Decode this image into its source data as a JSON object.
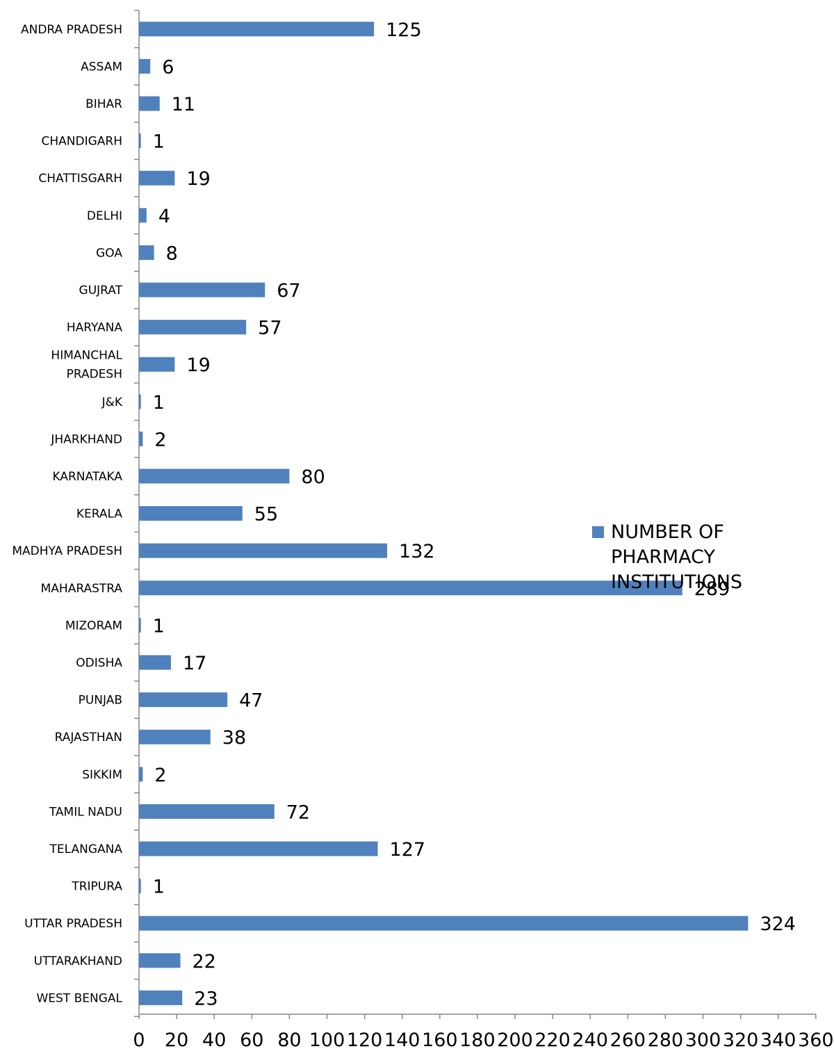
{
  "chart_data": {
    "type": "bar",
    "orientation": "horizontal",
    "categories": [
      "ANDRA PRADESH",
      "ASSAM",
      "BIHAR",
      "CHANDIGARH",
      "CHATTISGARH",
      "DELHI",
      "GOA",
      "GUJRAT",
      "HARYANA",
      "HIMANCHAL PRADESH",
      "J&K",
      "JHARKHAND",
      "KARNATAKA",
      "KERALA",
      "MADHYA PRADESH",
      "MAHARASTRA",
      "MIZORAM",
      "ODISHA",
      "PUNJAB",
      "RAJASTHAN",
      "SIKKIM",
      "TAMIL NADU",
      "TELANGANA",
      "TRIPURA",
      "UTTAR PRADESH",
      "UTTARAKHAND",
      "WEST BENGAL"
    ],
    "category_lines": [
      [
        "ANDRA PRADESH"
      ],
      [
        "ASSAM"
      ],
      [
        "BIHAR"
      ],
      [
        "CHANDIGARH"
      ],
      [
        "CHATTISGARH"
      ],
      [
        "DELHI"
      ],
      [
        "GOA"
      ],
      [
        "GUJRAT"
      ],
      [
        "HARYANA"
      ],
      [
        "HIMANCHAL",
        "PRADESH"
      ],
      [
        "J&K"
      ],
      [
        "JHARKHAND"
      ],
      [
        "KARNATAKA"
      ],
      [
        "KERALA"
      ],
      [
        "MADHYA PRADESH"
      ],
      [
        "MAHARASTRA"
      ],
      [
        "MIZORAM"
      ],
      [
        "ODISHA"
      ],
      [
        "PUNJAB"
      ],
      [
        "RAJASTHAN"
      ],
      [
        "SIKKIM"
      ],
      [
        "TAMIL NADU"
      ],
      [
        "TELANGANA"
      ],
      [
        "TRIPURA"
      ],
      [
        "UTTAR PRADESH"
      ],
      [
        "UTTARAKHAND"
      ],
      [
        "WEST BENGAL"
      ]
    ],
    "series": [
      {
        "name": "NUMBER OF PHARMACY INSTITUTIONS",
        "legend_lines": [
          "NUMBER OF PHARMACY",
          "INSTITUTIONS"
        ],
        "values": [
          125,
          6,
          11,
          1,
          19,
          4,
          8,
          67,
          57,
          19,
          1,
          2,
          80,
          55,
          132,
          289,
          1,
          17,
          47,
          38,
          2,
          72,
          127,
          1,
          324,
          22,
          23
        ],
        "color": "#4F81BD"
      }
    ],
    "xlim": [
      0,
      360
    ],
    "xticks": [
      0,
      20,
      40,
      60,
      80,
      100,
      120,
      140,
      160,
      180,
      200,
      220,
      240,
      260,
      280,
      300,
      320,
      340,
      360
    ],
    "xlabel": "",
    "ylabel": "",
    "title": "",
    "grid": false,
    "data_labels": true,
    "legend_position": "right"
  }
}
